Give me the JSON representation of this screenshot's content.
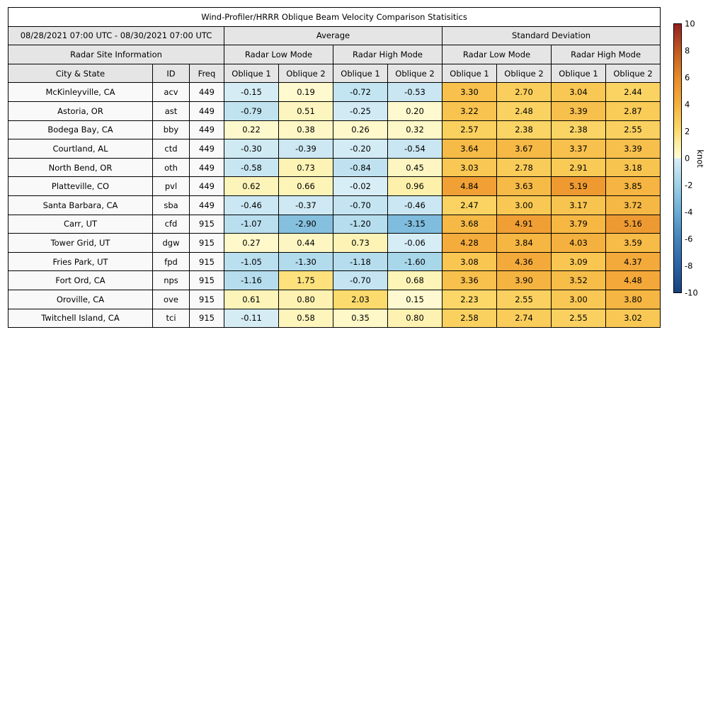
{
  "title": "Wind-Profiler/HRRR Oblique Beam Velocity Comparison Statisitics",
  "table": {
    "date_range": "08/28/2021 07:00 UTC - 08/30/2021 07:00 UTC",
    "group_headers": {
      "average": "Average",
      "std": "Standard Deviation"
    },
    "site_info_header": "Radar Site Information",
    "mode_headers": [
      "Radar Low Mode",
      "Radar High Mode",
      "Radar Low Mode",
      "Radar High Mode"
    ],
    "column_headers": {
      "city": "City & State",
      "id": "ID",
      "freq": "Freq"
    },
    "oblique_headers": [
      "Oblique 1",
      "Oblique 2",
      "Oblique 1",
      "Oblique 2",
      "Oblique 1",
      "Oblique 2",
      "Oblique 1",
      "Oblique 2"
    ]
  },
  "chart_data": {
    "type": "heatmap",
    "title": "Wind-Profiler/HRRR Oblique Beam Velocity Comparison Statisitics",
    "date_range": "08/28/2021 07:00 UTC - 08/30/2021 07:00 UTC",
    "columns": [
      "Average / Radar Low Mode / Oblique 1",
      "Average / Radar Low Mode / Oblique 2",
      "Average / Radar High Mode / Oblique 1",
      "Average / Radar High Mode / Oblique 2",
      "Standard Deviation / Radar Low Mode / Oblique 1",
      "Standard Deviation / Radar Low Mode / Oblique 2",
      "Standard Deviation / Radar High Mode / Oblique 1",
      "Standard Deviation / Radar High Mode / Oblique 2"
    ],
    "sites": [
      {
        "city": "McKinleyville, CA",
        "id": "acv",
        "freq": "449",
        "values": [
          -0.15,
          0.19,
          -0.72,
          -0.53,
          3.3,
          2.7,
          3.04,
          2.44
        ]
      },
      {
        "city": "Astoria, OR",
        "id": "ast",
        "freq": "449",
        "values": [
          -0.79,
          0.51,
          -0.25,
          0.2,
          3.22,
          2.48,
          3.39,
          2.87
        ]
      },
      {
        "city": "Bodega Bay, CA",
        "id": "bby",
        "freq": "449",
        "values": [
          0.22,
          0.38,
          0.26,
          0.32,
          2.57,
          2.38,
          2.38,
          2.55
        ]
      },
      {
        "city": "Courtland, AL",
        "id": "ctd",
        "freq": "449",
        "values": [
          -0.3,
          -0.39,
          -0.2,
          -0.54,
          3.64,
          3.67,
          3.37,
          3.39
        ]
      },
      {
        "city": "North Bend, OR",
        "id": "oth",
        "freq": "449",
        "values": [
          -0.58,
          0.73,
          -0.84,
          0.45,
          3.03,
          2.78,
          2.91,
          3.18
        ]
      },
      {
        "city": "Platteville, CO",
        "id": "pvl",
        "freq": "449",
        "values": [
          0.62,
          0.66,
          -0.02,
          0.96,
          4.84,
          3.63,
          5.19,
          3.85
        ]
      },
      {
        "city": "Santa Barbara, CA",
        "id": "sba",
        "freq": "449",
        "values": [
          -0.46,
          -0.37,
          -0.7,
          -0.46,
          2.47,
          3.0,
          3.17,
          3.72
        ]
      },
      {
        "city": "Carr, UT",
        "id": "cfd",
        "freq": "915",
        "values": [
          -1.07,
          -2.9,
          -1.2,
          -3.15,
          3.68,
          4.91,
          3.79,
          5.16
        ]
      },
      {
        "city": "Tower Grid, UT",
        "id": "dgw",
        "freq": "915",
        "values": [
          0.27,
          0.44,
          0.73,
          -0.06,
          4.28,
          3.84,
          4.03,
          3.59
        ]
      },
      {
        "city": "Fries Park, UT",
        "id": "fpd",
        "freq": "915",
        "values": [
          -1.05,
          -1.3,
          -1.18,
          -1.6,
          3.08,
          4.36,
          3.09,
          4.37
        ]
      },
      {
        "city": "Fort Ord, CA",
        "id": "nps",
        "freq": "915",
        "values": [
          -1.16,
          1.75,
          -0.7,
          0.68,
          3.36,
          3.9,
          3.52,
          4.48
        ]
      },
      {
        "city": "Oroville, CA",
        "id": "ove",
        "freq": "915",
        "values": [
          0.61,
          0.8,
          2.03,
          0.15,
          2.23,
          2.55,
          3.0,
          3.8
        ]
      },
      {
        "city": "Twitchell Island, CA",
        "id": "tci",
        "freq": "915",
        "values": [
          -0.11,
          0.58,
          0.35,
          0.8,
          2.58,
          2.74,
          2.55,
          3.02
        ]
      }
    ],
    "colorbar": {
      "label": "knot",
      "min": -10,
      "max": 10,
      "ticks": [
        10,
        8,
        6,
        4,
        2,
        0,
        -2,
        -4,
        -6,
        -8,
        -10
      ],
      "color_stops": [
        [
          -10,
          "#17427f"
        ],
        [
          -8,
          "#2a63a5"
        ],
        [
          -6,
          "#4383bd"
        ],
        [
          -4,
          "#69acd5"
        ],
        [
          -2,
          "#9dd1e7"
        ],
        [
          -0.0001,
          "#d9eef6"
        ],
        [
          0.0001,
          "#fefbd7"
        ],
        [
          1,
          "#fdf0a8"
        ],
        [
          2,
          "#fbdc6e"
        ],
        [
          3,
          "#f9c854"
        ],
        [
          4,
          "#f5b23f"
        ],
        [
          5,
          "#f09d33"
        ],
        [
          6,
          "#e68c2a"
        ],
        [
          8,
          "#c25a20"
        ],
        [
          10,
          "#941f20"
        ]
      ]
    }
  }
}
